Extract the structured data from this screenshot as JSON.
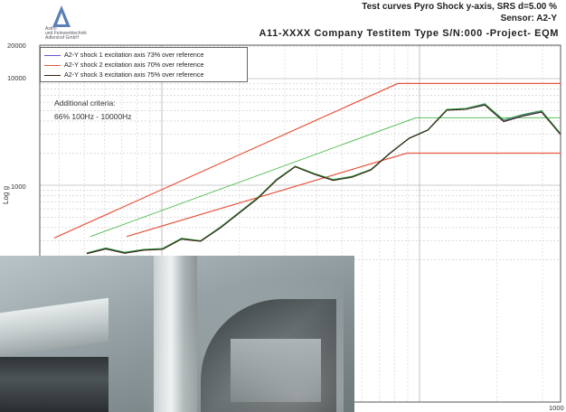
{
  "header": {
    "line1": "Test curves Pyro Shock y-axis, SRS d=5.00 %",
    "line2": "Sensor: A2-Y",
    "line3": "A11-XXXX  Company  Testitem  Type  S/N:000  -Project-  EQM"
  },
  "logo": {
    "icon": "triangle-logo-icon",
    "text": "Astro-\nund Feinwerktechnik\nAdlershof GmbH"
  },
  "annotation": {
    "line1": "Additional criteria:",
    "line2": "66% 100Hz - 10000Hz"
  },
  "photo": {
    "subject": "shock test fixture photograph"
  },
  "chart_data": {
    "type": "line",
    "title": "Test curves Pyro Shock y-axis, SRS d=5.00 %",
    "xlabel": "",
    "ylabel": "Log g",
    "yscale": "log",
    "xscale": "log",
    "ylim": [
      200,
      20000
    ],
    "ytick_labels": [
      "20000",
      "10000",
      "1000"
    ],
    "xtick_labels": [
      "1000"
    ],
    "grid": true,
    "legend_position": "top-left",
    "colors": {
      "shock1": "#6a4fd6",
      "shock2": "#2e9e3e",
      "shock3": "#3a1f16",
      "tolerance": "#e8553e",
      "reference": "#46b846"
    },
    "series": [
      {
        "name": "A2-Y shock 1 excitation axis  73% over reference",
        "color": "#6a4fd6",
        "values": [
          230,
          255,
          232,
          248,
          252,
          315,
          300,
          395,
          545,
          750,
          1120,
          1500,
          1280,
          1120,
          1200,
          1400,
          2000,
          2750,
          3300,
          5100,
          5200,
          5700,
          4000,
          4500,
          4900,
          3000
        ]
      },
      {
        "name": "A2-Y shock 2 excitation axis  70% over reference",
        "color": "#2e9e3e",
        "values": [
          232,
          258,
          235,
          250,
          255,
          318,
          302,
          400,
          550,
          760,
          1130,
          1510,
          1290,
          1130,
          1210,
          1410,
          2010,
          2770,
          3320,
          5150,
          5250,
          5800,
          4100,
          4600,
          5000,
          3050
        ]
      },
      {
        "name": "A2-Y shock 3 excitation axis  75% over reference",
        "color": "#3a1f16",
        "values": [
          228,
          252,
          230,
          246,
          250,
          312,
          298,
          392,
          540,
          745,
          1110,
          1490,
          1270,
          1110,
          1190,
          1390,
          1990,
          2740,
          3280,
          5050,
          5150,
          5650,
          3950,
          4450,
          4850,
          2980
        ]
      }
    ],
    "reference_lines": [
      {
        "role": "upper-tolerance",
        "color": "#e8553e"
      },
      {
        "role": "reference",
        "color": "#46b846"
      },
      {
        "role": "lower-tolerance",
        "color": "#e8553e"
      }
    ]
  }
}
